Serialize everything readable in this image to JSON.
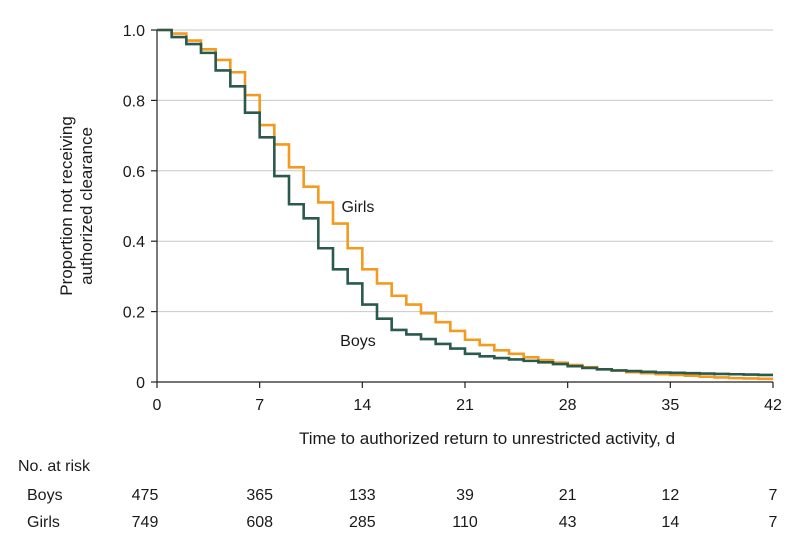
{
  "chart_data": {
    "type": "line",
    "step": true,
    "title": "",
    "xlabel": "Time to authorized return to unrestricted activity, d",
    "ylabel": [
      "Proportion not receiving",
      "authorized clearance"
    ],
    "xlim": [
      0,
      42
    ],
    "ylim": [
      0,
      1.0
    ],
    "xticks": [
      0,
      7,
      14,
      21,
      28,
      35,
      42
    ],
    "yticks": [
      0,
      0.2,
      0.4,
      0.6,
      0.8,
      1.0
    ],
    "ytick_labels": [
      "0",
      "0.2",
      "0.4",
      "0.6",
      "0.8",
      "1.0"
    ],
    "grid": "horizontal",
    "series": [
      {
        "name": "Girls",
        "color": "#f39a1f",
        "x": [
          0,
          1,
          2,
          3,
          4,
          5,
          6,
          7,
          8,
          9,
          10,
          11,
          12,
          13,
          14,
          15,
          16,
          17,
          18,
          19,
          20,
          21,
          22,
          23,
          24,
          25,
          26,
          27,
          28,
          29,
          30,
          31,
          32,
          33,
          34,
          35,
          36,
          37,
          38,
          39,
          40,
          41,
          42
        ],
        "y": [
          1.0,
          0.99,
          0.97,
          0.945,
          0.915,
          0.88,
          0.815,
          0.73,
          0.675,
          0.61,
          0.555,
          0.51,
          0.45,
          0.38,
          0.32,
          0.28,
          0.245,
          0.22,
          0.195,
          0.17,
          0.145,
          0.12,
          0.105,
          0.09,
          0.08,
          0.07,
          0.062,
          0.055,
          0.048,
          0.042,
          0.036,
          0.032,
          0.028,
          0.025,
          0.022,
          0.02,
          0.018,
          0.015,
          0.013,
          0.011,
          0.01,
          0.009,
          0.009
        ]
      },
      {
        "name": "Boys",
        "color": "#2a5a4e",
        "x": [
          0,
          1,
          2,
          3,
          4,
          5,
          6,
          7,
          8,
          9,
          10,
          11,
          12,
          13,
          14,
          15,
          16,
          17,
          18,
          19,
          20,
          21,
          22,
          23,
          24,
          25,
          26,
          27,
          28,
          29,
          30,
          31,
          32,
          33,
          34,
          35,
          36,
          37,
          38,
          39,
          40,
          41,
          42
        ],
        "y": [
          1.0,
          0.98,
          0.96,
          0.935,
          0.885,
          0.84,
          0.765,
          0.695,
          0.585,
          0.505,
          0.465,
          0.38,
          0.32,
          0.28,
          0.22,
          0.18,
          0.148,
          0.135,
          0.122,
          0.108,
          0.095,
          0.08,
          0.073,
          0.068,
          0.064,
          0.06,
          0.056,
          0.051,
          0.045,
          0.04,
          0.036,
          0.033,
          0.031,
          0.029,
          0.027,
          0.026,
          0.025,
          0.024,
          0.023,
          0.022,
          0.021,
          0.02,
          0.02
        ]
      }
    ],
    "annotations": [
      {
        "text": "Girls",
        "x": 13.7,
        "y": 0.5
      },
      {
        "text": "Boys",
        "x": 13.7,
        "y": 0.12
      }
    ],
    "risk_table": {
      "title": "No. at risk",
      "times": [
        0,
        7,
        14,
        21,
        28,
        35,
        42
      ],
      "rows": [
        {
          "label": "Boys",
          "values": [
            "475",
            "365",
            "133",
            "39",
            "21",
            "12",
            "7"
          ]
        },
        {
          "label": "Girls",
          "values": [
            "749",
            "608",
            "285",
            "110",
            "43",
            "14",
            "7"
          ]
        }
      ]
    }
  }
}
